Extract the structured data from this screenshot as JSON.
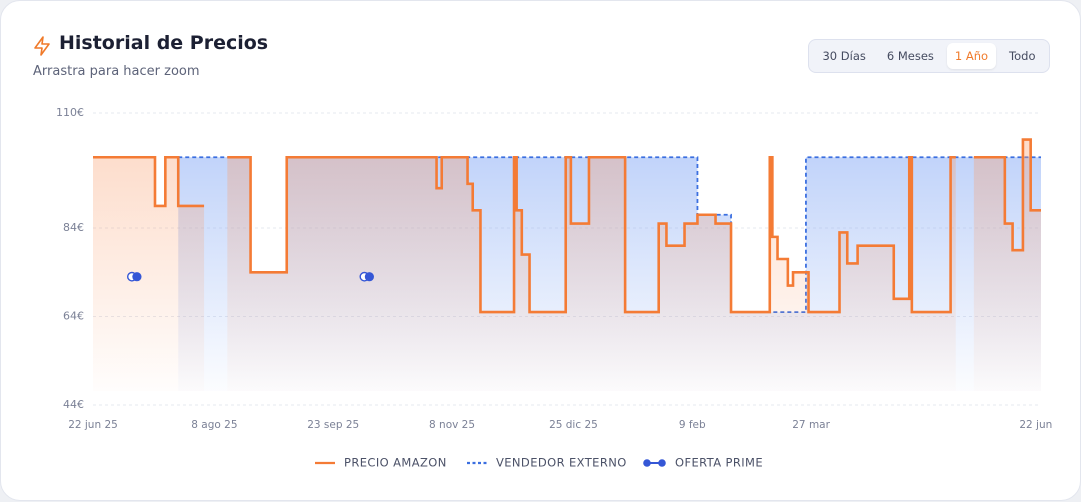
{
  "header": {
    "title": "Historial de Precios",
    "subtitle": "Arrastra para hacer zoom",
    "ranges": [
      "30 Días",
      "6 Meses",
      "1 Año",
      "Todo"
    ],
    "active_range": "1 Año"
  },
  "chart_data": {
    "type": "step",
    "xlim": [
      "2025-06-22",
      "2026-06-24"
    ],
    "xticks": [
      {
        "value": "2025-06-22",
        "label": "22 jun 25"
      },
      {
        "value": "2025-08-08",
        "label": "8 ago 25"
      },
      {
        "value": "2025-09-23",
        "label": "23 sep 25"
      },
      {
        "value": "2025-11-08",
        "label": "8 nov 25"
      },
      {
        "value": "2025-12-25",
        "label": "25 dic 25"
      },
      {
        "value": "2026-02-09",
        "label": "9 feb"
      },
      {
        "value": "2026-03-27",
        "label": "27 mar"
      },
      {
        "value": "2026-06-22",
        "label": "22 jun"
      }
    ],
    "ylim": [
      44,
      110
    ],
    "yticks": [
      {
        "value": 44,
        "label": "44€"
      },
      {
        "value": 64,
        "label": "64€"
      },
      {
        "value": 84,
        "label": "84€"
      },
      {
        "value": 110,
        "label": "110€"
      }
    ],
    "grid": true,
    "series": [
      {
        "name": "VENDEDOR EXTERNO",
        "color": "#3b6fe0",
        "line_style": "dashed",
        "marker": "step",
        "x": [
          "2025-07-25",
          "2025-08-22",
          "2025-09-05",
          "2026-02-11",
          "2026-02-24",
          "2026-03-25"
        ],
        "values": [
          100,
          74,
          100,
          87,
          65,
          100
        ]
      },
      {
        "name": "PRECIO AMAZON",
        "color": "#f47b35",
        "line_style": "solid",
        "marker": "step",
        "x": [
          "2025-06-22",
          "2025-07-16",
          "2025-07-20",
          "2025-07-25",
          "2025-08-04",
          "2025-08-13",
          "2025-08-22",
          "2025-09-05",
          "2025-11-02",
          "2025-11-04",
          "2025-11-14",
          "2025-11-16",
          "2025-11-19",
          "2025-12-02",
          "2025-12-03",
          "2025-12-05",
          "2025-12-08",
          "2025-12-22",
          "2025-12-24",
          "2025-12-31",
          "2026-01-14",
          "2026-01-27",
          "2026-01-30",
          "2026-02-06",
          "2026-02-11",
          "2026-02-18",
          "2026-02-24",
          "2026-03-11",
          "2026-03-12",
          "2026-03-14",
          "2026-03-18",
          "2026-03-20",
          "2026-03-26",
          "2026-04-07",
          "2026-04-10",
          "2026-04-14",
          "2026-04-28",
          "2026-05-04",
          "2026-05-05",
          "2026-05-20",
          "2026-05-22",
          "2026-05-29",
          "2026-06-10",
          "2026-06-13",
          "2026-06-17",
          "2026-06-20"
        ],
        "values": [
          100,
          89,
          100,
          89,
          null,
          100,
          74,
          100,
          93,
          100,
          94,
          88,
          65,
          100,
          88,
          78,
          65,
          100,
          85,
          100,
          65,
          85,
          80,
          85,
          87,
          85,
          65,
          100,
          82,
          77,
          71,
          74,
          65,
          83,
          76,
          80,
          68,
          100,
          65,
          100,
          null,
          100,
          85,
          79,
          104,
          88
        ]
      },
      {
        "name": "OFERTA PRIME",
        "color": "#3557d6",
        "line_style": "none",
        "marker": "dot",
        "x": [
          "2025-07-09",
          "2025-10-07"
        ],
        "values": [
          73,
          73
        ]
      }
    ],
    "legend": "bottom"
  }
}
